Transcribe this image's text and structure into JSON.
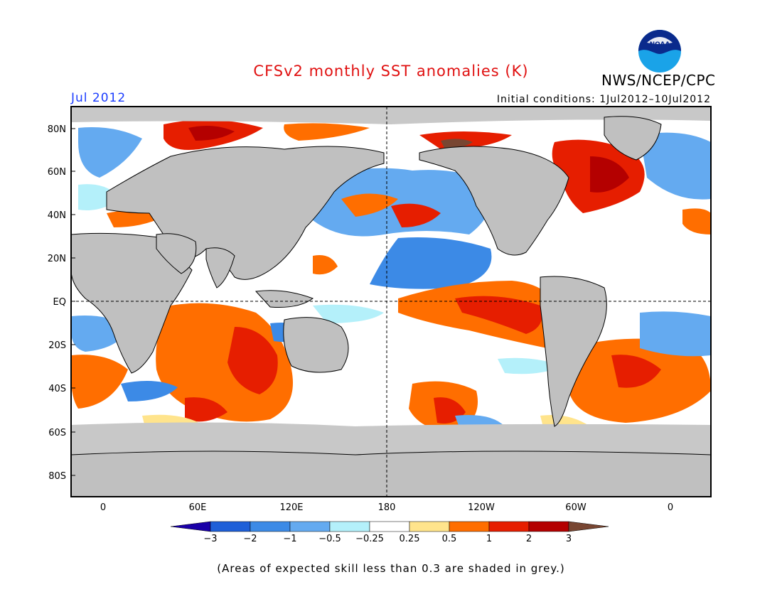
{
  "title": "CFSv2 monthly SST anomalies (K)",
  "month_label": "Jul 2012",
  "initial_conditions": "Initial conditions: 1Jul2012–10Jul2012",
  "agency": "NWS/NCEP/CPC",
  "logo_text": "NOAA",
  "footnote": "(Areas of expected skill less than 0.3 are shaded in grey.)",
  "map": {
    "lat_labels": [
      "80N",
      "60N",
      "40N",
      "20N",
      "EQ",
      "20S",
      "40S",
      "60S",
      "80S"
    ],
    "lon_labels": [
      "0",
      "60E",
      "120E",
      "180",
      "120W",
      "60W",
      "0"
    ],
    "colors": {
      "land": "#c0c0c0",
      "low_skill": "#c8c8c8",
      "ocean_neutral": "#ffffff"
    }
  },
  "colorbar": {
    "labels": [
      "−3",
      "−2",
      "−1",
      "−0.5",
      "−0.25",
      "0.25",
      "0.5",
      "1",
      "2",
      "3"
    ],
    "colors": [
      "#1a00a8",
      "#1e5fd8",
      "#3c8ae6",
      "#64aaf0",
      "#b4f0fa",
      "#ffffff",
      "#ffe48c",
      "#ff6e00",
      "#e61e00",
      "#b40000",
      "#784632"
    ]
  }
}
